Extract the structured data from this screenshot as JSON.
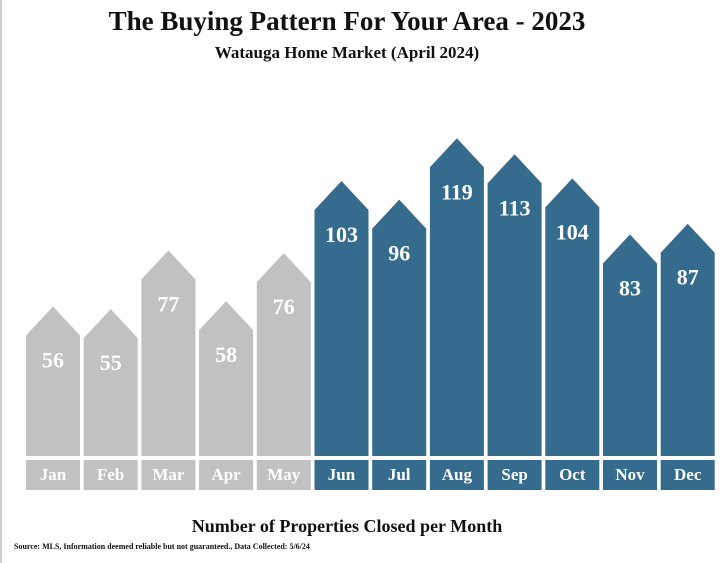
{
  "chart_data": {
    "type": "bar",
    "title": "The Buying Pattern For Your Area - 2023",
    "subtitle": "Watauga Home Market (April 2024)",
    "xlabel": "Number of Properties Closed per Month",
    "ylabel": "",
    "categories": [
      "Jan",
      "Feb",
      "Mar",
      "Apr",
      "May",
      "Jun",
      "Jul",
      "Aug",
      "Sep",
      "Oct",
      "Nov",
      "Dec"
    ],
    "values": [
      56,
      55,
      77,
      58,
      76,
      103,
      96,
      119,
      113,
      104,
      83,
      87
    ],
    "colors": [
      "#c1c1c1",
      "#c1c1c1",
      "#c1c1c1",
      "#c1c1c1",
      "#c1c1c1",
      "#356b8c",
      "#356b8c",
      "#356b8c",
      "#356b8c",
      "#356b8c",
      "#356b8c",
      "#356b8c"
    ],
    "grid": false,
    "legend": "none"
  },
  "source": "Source: MLS, Information deemed reliable but not guaranteed., Data Collected: 5/6/24"
}
